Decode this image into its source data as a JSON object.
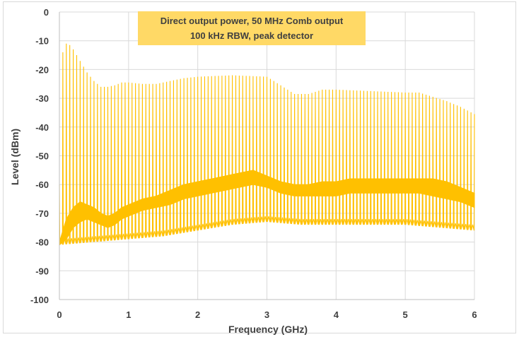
{
  "chart_data": {
    "type": "line",
    "annotation": [
      "Direct output power, 50 MHz Comb output",
      "100 kHz RBW, peak detector"
    ],
    "xlabel": "Frequency (GHz)",
    "ylabel": "Level (dBm)",
    "xlim": [
      0,
      6
    ],
    "ylim": [
      -100,
      0
    ],
    "x_ticks": [
      0,
      1,
      2,
      3,
      4,
      5,
      6
    ],
    "y_ticks": [
      0,
      -10,
      -20,
      -30,
      -40,
      -50,
      -60,
      -70,
      -80,
      -90,
      -100
    ],
    "grid": true,
    "comb_spacing_ghz": 0.05,
    "series": [
      {
        "color": "#FFC000",
        "peak_envelope": {
          "x": [
            0.0,
            0.05,
            0.1,
            0.15,
            0.2,
            0.3,
            0.4,
            0.5,
            0.6,
            0.7,
            0.8,
            0.9,
            1.0,
            1.2,
            1.4,
            1.6,
            1.8,
            2.0,
            2.5,
            3.0,
            3.2,
            3.4,
            3.6,
            3.8,
            4.0,
            4.5,
            5.0,
            5.2,
            5.4,
            5.6,
            5.8,
            6.0
          ],
          "y": [
            -60,
            -14,
            -11,
            -11.5,
            -13,
            -17,
            -21,
            -24,
            -26,
            -26,
            -25.5,
            -24.5,
            -24.5,
            -25,
            -25,
            -24,
            -23,
            -22.5,
            -22,
            -22.5,
            -25.5,
            -28.5,
            -28.5,
            -27,
            -27,
            -27.5,
            -28,
            -28,
            -29.5,
            -31,
            -33,
            -35.5
          ]
        },
        "noise_envelope": {
          "x": [
            0.0,
            0.1,
            0.2,
            0.3,
            0.4,
            0.5,
            0.6,
            0.7,
            0.8,
            0.9,
            1.0,
            1.2,
            1.4,
            1.6,
            1.8,
            2.0,
            2.2,
            2.4,
            2.6,
            2.8,
            3.0,
            3.2,
            3.4,
            3.6,
            3.8,
            4.0,
            4.2,
            4.4,
            4.6,
            4.8,
            5.0,
            5.2,
            5.4,
            5.6,
            5.8,
            6.0
          ],
          "y_upper": [
            -80,
            -72,
            -68,
            -66,
            -67,
            -68,
            -70,
            -71,
            -70,
            -68,
            -67,
            -65,
            -64,
            -62,
            -60,
            -59,
            -58,
            -57,
            -56,
            -55,
            -57,
            -59,
            -60,
            -60,
            -59,
            -59,
            -58,
            -58,
            -58,
            -58,
            -58,
            -58,
            -58,
            -59,
            -61,
            -63
          ],
          "y_lower": [
            -81,
            -79,
            -75,
            -73,
            -72,
            -73,
            -74,
            -75,
            -74,
            -72,
            -71,
            -69,
            -68,
            -67,
            -65,
            -64,
            -63,
            -62,
            -61,
            -60,
            -61,
            -63,
            -64,
            -64,
            -64,
            -64,
            -63,
            -63,
            -63,
            -63,
            -63,
            -63,
            -64,
            -65,
            -66,
            -68
          ]
        },
        "trough_envelope": {
          "x": [
            0.0,
            0.5,
            1.0,
            1.5,
            2.0,
            2.5,
            3.0,
            3.5,
            4.0,
            4.5,
            5.0,
            5.5,
            6.0
          ],
          "y": [
            -81,
            -80,
            -79,
            -78,
            -76,
            -74,
            -73,
            -74,
            -74,
            -74,
            -74,
            -75,
            -76
          ]
        }
      }
    ]
  }
}
